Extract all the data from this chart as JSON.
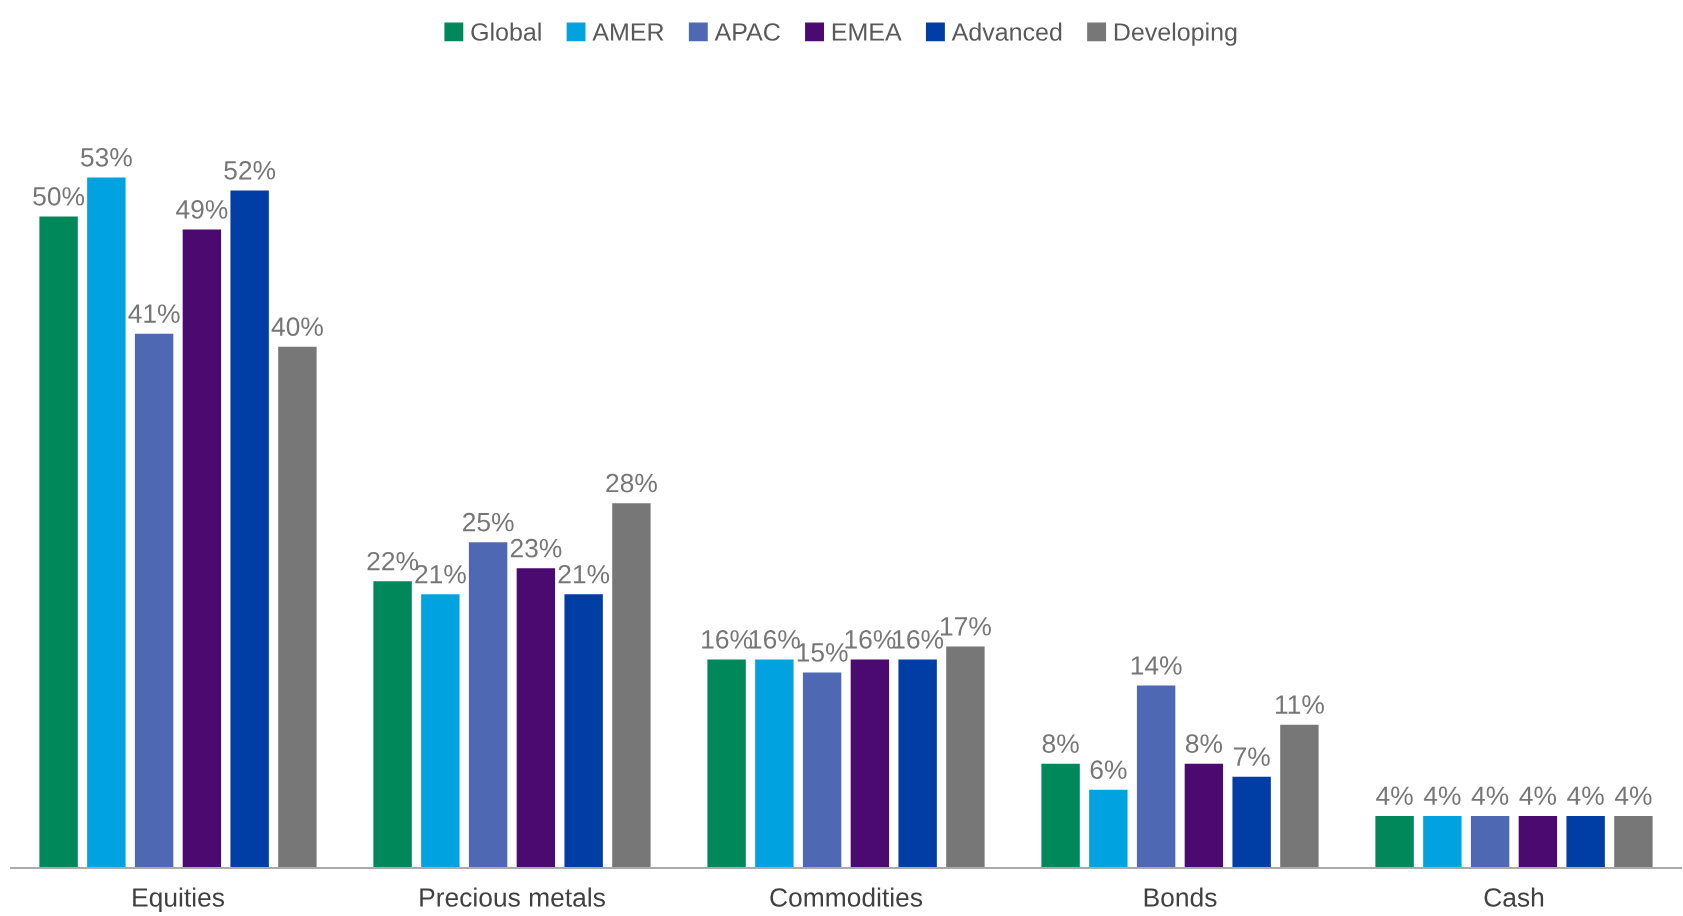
{
  "chart_data": {
    "type": "bar",
    "categories": [
      "Equities",
      "Precious metals",
      "Commodities",
      "Bonds",
      "Cash"
    ],
    "series": [
      {
        "name": "Global",
        "color": "#00875a",
        "values": [
          50,
          22,
          16,
          8,
          4
        ],
        "value_labels": [
          "50%",
          "22%",
          "16%",
          "8%",
          "4%"
        ]
      },
      {
        "name": "AMER",
        "color": "#00a3e0",
        "values": [
          53,
          21,
          16,
          6,
          4
        ],
        "value_labels": [
          "53%",
          "21%",
          "16%",
          "6%",
          "4%"
        ]
      },
      {
        "name": "APAC",
        "color": "#4f68b3",
        "values": [
          41,
          25,
          15,
          14,
          4
        ],
        "value_labels": [
          "41%",
          "25%",
          "15%",
          "14%",
          "4%"
        ]
      },
      {
        "name": "EMEA",
        "color": "#4b0a70",
        "values": [
          49,
          23,
          16,
          8,
          4
        ],
        "value_labels": [
          "49%",
          "23%",
          "16%",
          "8%",
          "4%"
        ]
      },
      {
        "name": "Advanced",
        "color": "#003da5",
        "values": [
          52,
          21,
          16,
          7,
          4
        ],
        "value_labels": [
          "52%",
          "21%",
          "16%",
          "7%",
          "4%"
        ]
      },
      {
        "name": "Developing",
        "color": "#777777",
        "values": [
          40,
          28,
          17,
          11,
          4
        ],
        "value_labels": [
          "40%",
          "28%",
          "17%",
          "11%",
          "4%"
        ]
      }
    ],
    "legend": "top",
    "grid": false
  }
}
